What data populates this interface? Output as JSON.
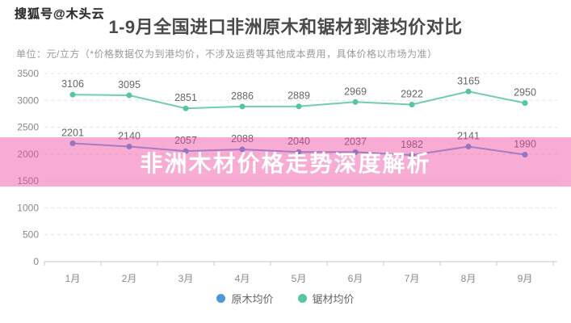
{
  "watermark": "搜狐号@木头云",
  "header": {
    "title": "1-9月全国进口非洲原木和锯材到港均价对比",
    "subtitle": "单位：元/立方（*价格数据仅为到港均价，不涉及运费等其他成本费用，具体价格以市场为准）"
  },
  "overlay_banner": {
    "text": "非洲木材价格走势深度解析",
    "bg_color": "#F0469E",
    "bg_opacity": 0.45,
    "text_color": "#FFFFFF"
  },
  "chart_data": {
    "type": "line",
    "categories": [
      "1月",
      "2月",
      "3月",
      "4月",
      "5月",
      "6月",
      "7月",
      "8月",
      "9月"
    ],
    "series": [
      {
        "name": "原木均价",
        "color": "#4E97DB",
        "values": [
          2201,
          2140,
          2057,
          2088,
          2040,
          2037,
          1982,
          2141,
          1990
        ]
      },
      {
        "name": "锯材均价",
        "color": "#55C6A1",
        "values": [
          3106,
          3095,
          2851,
          2886,
          2889,
          2969,
          2922,
          3165,
          2950
        ]
      }
    ],
    "ylim": [
      0,
      3500
    ],
    "ytick_step": 500,
    "grid": true,
    "gridline_style": "dashed",
    "value_labels": true,
    "label_color": "#666666",
    "axis_text_color": "#8a8a8a",
    "legend_position": "bottom"
  }
}
